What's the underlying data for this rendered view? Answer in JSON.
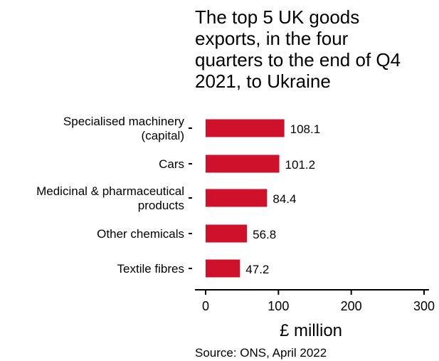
{
  "chart_data": {
    "type": "bar",
    "orientation": "horizontal",
    "title": "The top 5 UK goods exports, in the four quarters to the end of Q4 2021, to Ukraine",
    "title_lines": [
      "The top 5 UK goods",
      "exports, in the four",
      "quarters to the end of Q4",
      "2021, to Ukraine"
    ],
    "categories": [
      "Specialised machinery (capital)",
      "Cars",
      "Medicinal & pharmaceutical products",
      "Other chemicals",
      "Textile fibres"
    ],
    "category_lines": [
      [
        "Specialised machinery",
        "(capital)"
      ],
      [
        "Cars"
      ],
      [
        "Medicinal & pharmaceutical",
        "products"
      ],
      [
        "Other chemicals"
      ],
      [
        "Textile fibres"
      ]
    ],
    "values": [
      108.1,
      101.2,
      84.4,
      56.8,
      47.2
    ],
    "value_labels": [
      "108.1",
      "101.2",
      "84.4",
      "56.8",
      "47.2"
    ],
    "xlabel": "£ million",
    "xlim": [
      0,
      300
    ],
    "xticks": [
      0,
      100,
      200,
      300
    ],
    "xtick_labels": [
      "0",
      "100",
      "200",
      "300"
    ],
    "bar_color": "#d0112b",
    "grid": false,
    "source": "Source: ONS, April 2022"
  }
}
